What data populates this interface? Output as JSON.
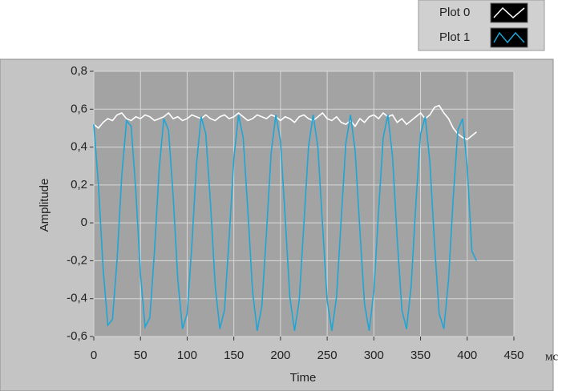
{
  "chart_data": {
    "type": "line",
    "x_label": "Time",
    "y_label": "Amplitude",
    "x_unit": "мс",
    "x": [
      0,
      5,
      10,
      15,
      20,
      25,
      30,
      35,
      40,
      45,
      50,
      55,
      60,
      65,
      70,
      75,
      80,
      85,
      90,
      95,
      100,
      105,
      110,
      115,
      120,
      125,
      130,
      135,
      140,
      145,
      150,
      155,
      160,
      165,
      170,
      175,
      180,
      185,
      190,
      195,
      200,
      205,
      210,
      215,
      220,
      225,
      230,
      235,
      240,
      245,
      250,
      255,
      260,
      265,
      270,
      275,
      280,
      285,
      290,
      295,
      300,
      305,
      310,
      315,
      320,
      325,
      330,
      335,
      340,
      345,
      350,
      355,
      360,
      365,
      370,
      375,
      380,
      385,
      390,
      395,
      400,
      405,
      410
    ],
    "series": [
      {
        "name": "Plot 0",
        "color": "#ffffff",
        "values": [
          0.52,
          0.5,
          0.53,
          0.55,
          0.54,
          0.57,
          0.58,
          0.55,
          0.54,
          0.56,
          0.55,
          0.57,
          0.56,
          0.54,
          0.55,
          0.56,
          0.58,
          0.55,
          0.56,
          0.54,
          0.55,
          0.57,
          0.56,
          0.55,
          0.57,
          0.55,
          0.54,
          0.56,
          0.57,
          0.55,
          0.56,
          0.58,
          0.56,
          0.54,
          0.55,
          0.57,
          0.56,
          0.55,
          0.57,
          0.56,
          0.54,
          0.56,
          0.55,
          0.53,
          0.56,
          0.57,
          0.55,
          0.54,
          0.56,
          0.58,
          0.55,
          0.54,
          0.56,
          0.53,
          0.52,
          0.54,
          0.51,
          0.55,
          0.53,
          0.56,
          0.57,
          0.55,
          0.58,
          0.56,
          0.57,
          0.53,
          0.55,
          0.52,
          0.54,
          0.56,
          0.58,
          0.55,
          0.57,
          0.61,
          0.62,
          0.58,
          0.55,
          0.5,
          0.47,
          0.45,
          0.44,
          0.46,
          0.48
        ]
      },
      {
        "name": "Plot 1",
        "color": "#1ea6d6",
        "values": [
          0.52,
          0.2,
          -0.24,
          -0.54,
          -0.51,
          -0.19,
          0.25,
          0.54,
          0.51,
          0.17,
          -0.27,
          -0.55,
          -0.5,
          -0.15,
          0.28,
          0.55,
          0.49,
          0.14,
          -0.3,
          -0.56,
          -0.48,
          -0.12,
          0.31,
          0.56,
          0.47,
          0.1,
          -0.33,
          -0.56,
          -0.46,
          -0.08,
          0.34,
          0.57,
          0.45,
          0.07,
          -0.36,
          -0.57,
          -0.44,
          -0.05,
          0.37,
          0.57,
          0.43,
          0.03,
          -0.39,
          -0.57,
          -0.41,
          -0.01,
          0.4,
          0.57,
          0.4,
          -0.01,
          -0.41,
          -0.57,
          -0.39,
          0.02,
          0.42,
          0.57,
          0.38,
          -0.04,
          -0.43,
          -0.57,
          -0.36,
          0.06,
          0.45,
          0.57,
          0.35,
          -0.08,
          -0.46,
          -0.56,
          -0.33,
          0.1,
          0.47,
          0.56,
          0.32,
          -0.11,
          -0.48,
          -0.56,
          -0.3,
          0.13,
          0.49,
          0.55,
          0.29,
          -0.15,
          -0.2
        ]
      }
    ],
    "xlim": [
      0,
      450
    ],
    "xticks": [
      0,
      50,
      100,
      150,
      200,
      250,
      300,
      350,
      400,
      450
    ],
    "ylim": [
      -0.6,
      0.8
    ],
    "yticks": [
      {
        "value": -0.6,
        "label": "-0,6"
      },
      {
        "value": -0.4,
        "label": "-0,4"
      },
      {
        "value": -0.2,
        "label": "-0,2"
      },
      0,
      {
        "value": 0.2,
        "label": "0,2"
      },
      {
        "value": 0.4,
        "label": "0,4"
      },
      {
        "value": 0.6,
        "label": "0,6"
      },
      {
        "value": 0.8,
        "label": "0,8"
      }
    ],
    "grid": true,
    "legend": "top-right"
  }
}
